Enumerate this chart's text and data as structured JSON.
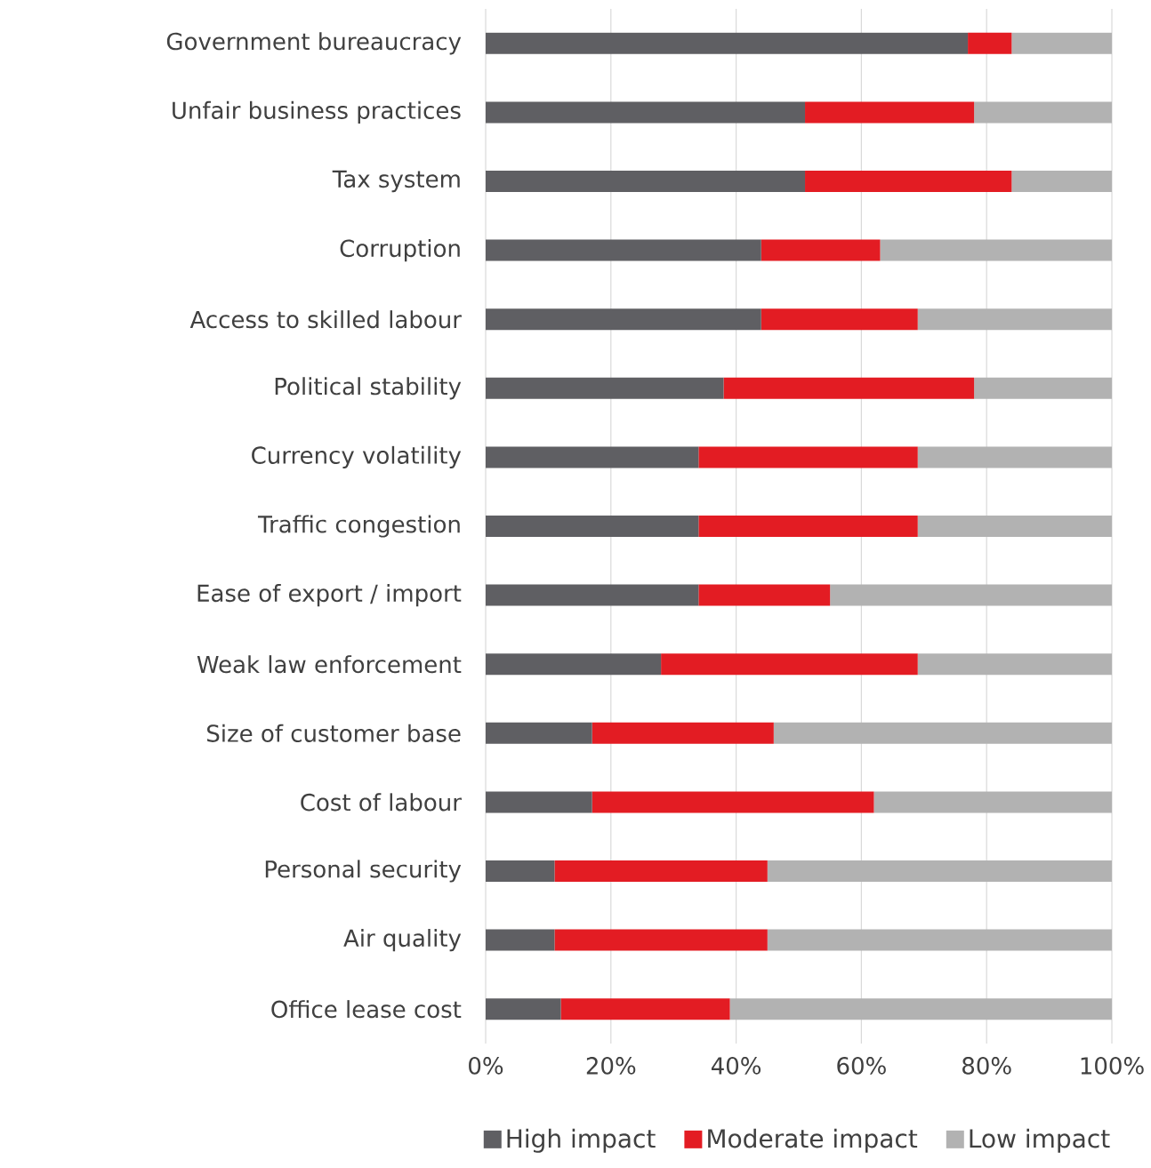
{
  "chart_data": {
    "type": "bar",
    "orientation": "horizontal",
    "stacked": true,
    "categories": [
      "Government bureaucracy",
      "Unfair business practices",
      "Tax system",
      "Corruption",
      "Access to skilled labour",
      "Political stability",
      "Currency volatility",
      "Traffic congestion",
      "Ease of export / import",
      "Weak law enforcement",
      "Size of customer base",
      "Cost of labour",
      "Personal security",
      "Air quality",
      "Office lease cost"
    ],
    "series": [
      {
        "name": "High impact",
        "color": "#5f5f63",
        "values": [
          77,
          51,
          51,
          44,
          44,
          38,
          34,
          34,
          34,
          28,
          17,
          17,
          11,
          11,
          12
        ]
      },
      {
        "name": "Moderate impact",
        "color": "#e31c23",
        "values": [
          7,
          27,
          33,
          19,
          25,
          40,
          35,
          35,
          21,
          41,
          29,
          45,
          34,
          34,
          27
        ]
      },
      {
        "name": "Low impact",
        "color": "#b2b2b2",
        "values": [
          16,
          22,
          16,
          37,
          31,
          22,
          31,
          31,
          45,
          31,
          54,
          38,
          55,
          55,
          61
        ]
      }
    ],
    "xlim": [
      0,
      100
    ],
    "xticks": [
      {
        "value": 0,
        "label": "0%"
      },
      {
        "value": 20,
        "label": "20%"
      },
      {
        "value": 40,
        "label": "40%"
      },
      {
        "value": 60,
        "label": "60%"
      },
      {
        "value": 80,
        "label": "80%"
      },
      {
        "value": 100,
        "label": "100%"
      }
    ],
    "grid": "x",
    "legend": "bottom"
  }
}
